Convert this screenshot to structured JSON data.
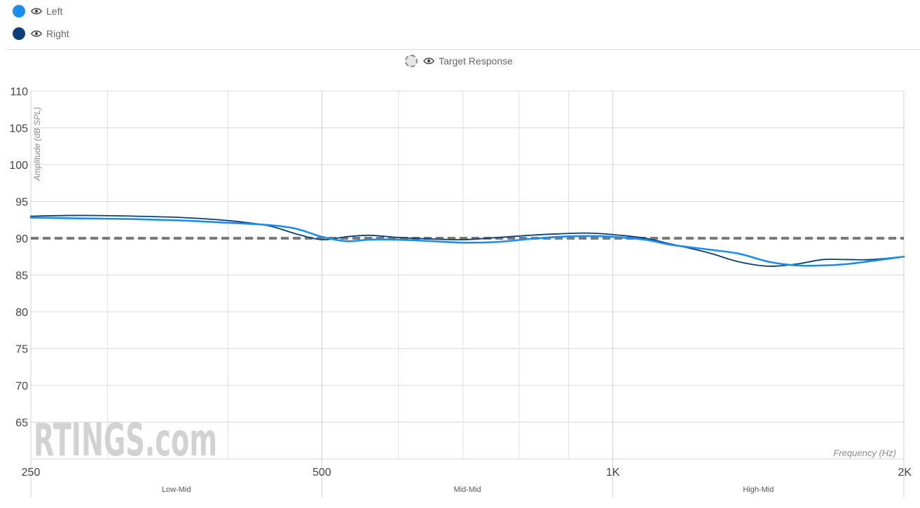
{
  "legend": {
    "items": [
      {
        "label": "Left",
        "color": "#1a8ef0",
        "icon": "eye-icon"
      },
      {
        "label": "Right",
        "color": "#0b3f75",
        "icon": "eye-icon"
      }
    ],
    "target": {
      "label": "Target Response",
      "icon": "eye-icon"
    }
  },
  "watermark": "RTINGS.com",
  "chart_data": {
    "type": "line",
    "xscale": "log",
    "xlim": [
      250,
      2000
    ],
    "ylim": [
      60,
      110
    ],
    "ylabel": "Amplitude (dB SPL)",
    "xlabel": "Frequency (Hz)",
    "y_ticks": [
      110,
      105,
      100,
      95,
      90,
      85,
      80,
      75,
      70,
      65
    ],
    "x_ticks": [
      {
        "value": 250,
        "label": "250"
      },
      {
        "value": 500,
        "label": "500"
      },
      {
        "value": 1000,
        "label": "1K"
      },
      {
        "value": 2000,
        "label": "2K"
      }
    ],
    "minor_x_gridlines": [
      300,
      400,
      600,
      700,
      800,
      900
    ],
    "bands": [
      {
        "label": "Low-Mid",
        "from": 250,
        "to": 500
      },
      {
        "label": "Mid-Mid",
        "from": 500,
        "to": 1000
      },
      {
        "label": "High-Mid",
        "from": 1000,
        "to": 2000
      }
    ],
    "grid": true,
    "series": [
      {
        "name": "Left",
        "color": "#1a8ef0",
        "x": [
          250,
          280,
          320,
          360,
          400,
          440,
          470,
          500,
          530,
          560,
          600,
          650,
          700,
          760,
          820,
          880,
          940,
          1000,
          1080,
          1150,
          1250,
          1350,
          1450,
          1550,
          1650,
          1750,
          1850,
          2000
        ],
        "y": [
          92.8,
          92.7,
          92.6,
          92.4,
          92.1,
          91.8,
          91.3,
          90.2,
          89.6,
          89.8,
          89.8,
          89.6,
          89.4,
          89.5,
          89.9,
          90.2,
          90.3,
          90.2,
          89.8,
          89.1,
          88.5,
          87.9,
          86.8,
          86.3,
          86.3,
          86.5,
          86.9,
          87.5
        ]
      },
      {
        "name": "Right",
        "color": "#0b3f75",
        "x": [
          250,
          280,
          320,
          360,
          400,
          440,
          470,
          500,
          530,
          560,
          600,
          650,
          700,
          760,
          820,
          880,
          940,
          1000,
          1080,
          1150,
          1250,
          1350,
          1450,
          1550,
          1650,
          1750,
          1850,
          2000
        ],
        "y": [
          93.0,
          93.1,
          93.0,
          92.8,
          92.4,
          91.7,
          90.6,
          89.8,
          90.2,
          90.4,
          90.1,
          89.9,
          89.8,
          90.1,
          90.4,
          90.6,
          90.7,
          90.5,
          90.0,
          89.2,
          88.1,
          86.8,
          86.2,
          86.5,
          87.1,
          87.1,
          87.1,
          87.5
        ]
      },
      {
        "name": "Target Response",
        "color": "#7a7a7a",
        "dashed": true,
        "x": [
          250,
          2000
        ],
        "y": [
          90,
          90
        ]
      }
    ]
  }
}
